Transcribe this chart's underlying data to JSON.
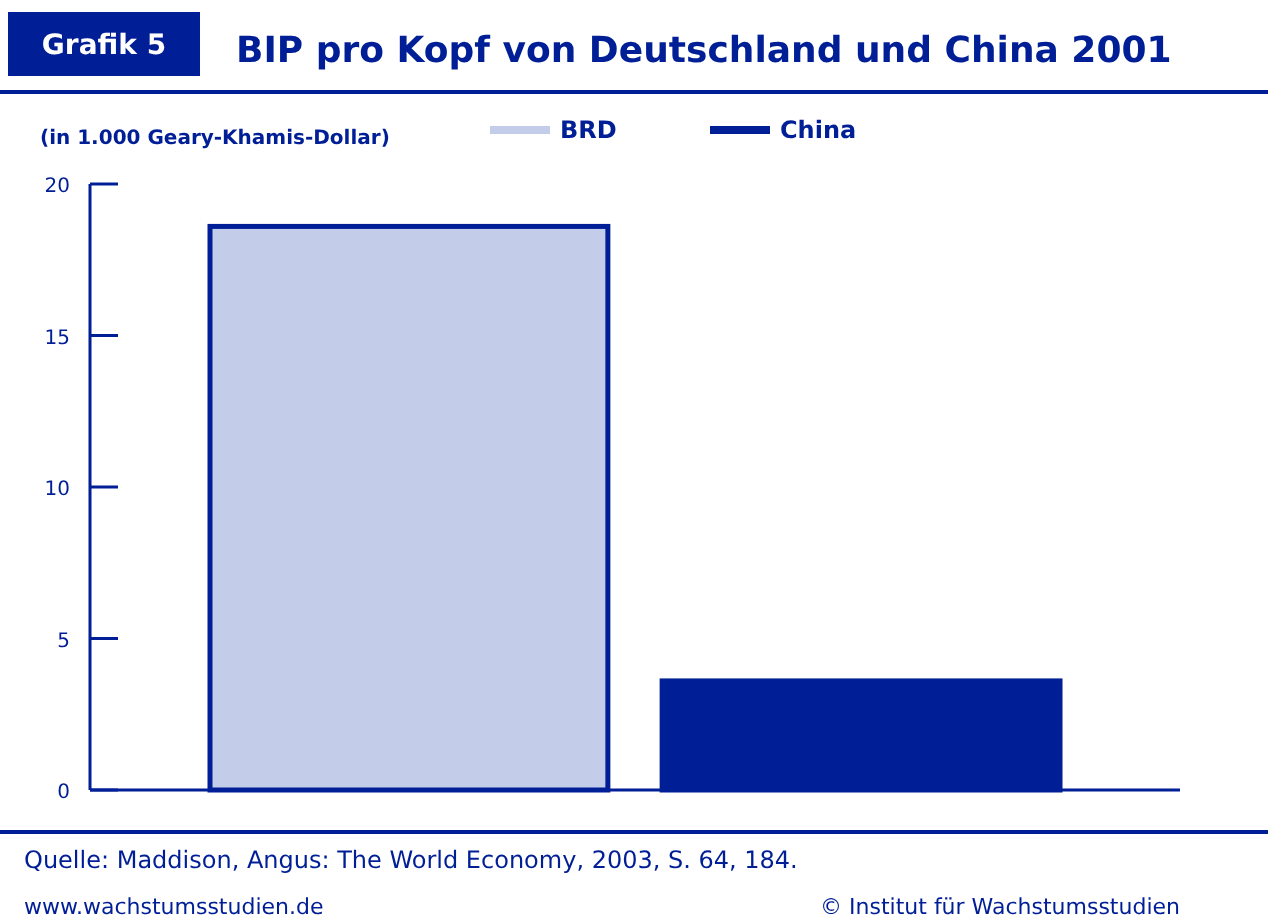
{
  "chart_data": {
    "type": "bar",
    "title": "BIP pro Kopf von Deutschland und China 2001",
    "ylabel": "(in 1.000 Geary-Khamis-Dollar)",
    "categories": [
      null,
      null
    ],
    "series": [
      {
        "name": "BRD",
        "color": "#c3cdea",
        "values": [
          18.6,
          null
        ]
      },
      {
        "name": "China",
        "color": "#001e96",
        "values": [
          null,
          3.6
        ]
      }
    ],
    "ylim": [
      0,
      20
    ],
    "yticks": [
      0,
      5,
      10,
      15,
      20
    ],
    "grid": false,
    "legend": "top",
    "annotations": [
      "Grafik 5",
      "Quelle: Maddison, Angus: The World Economy, 2003, S. 64, 184.",
      "www.wachstumsstudien.de",
      "© Institut für Wachstumsstudien"
    ]
  }
}
